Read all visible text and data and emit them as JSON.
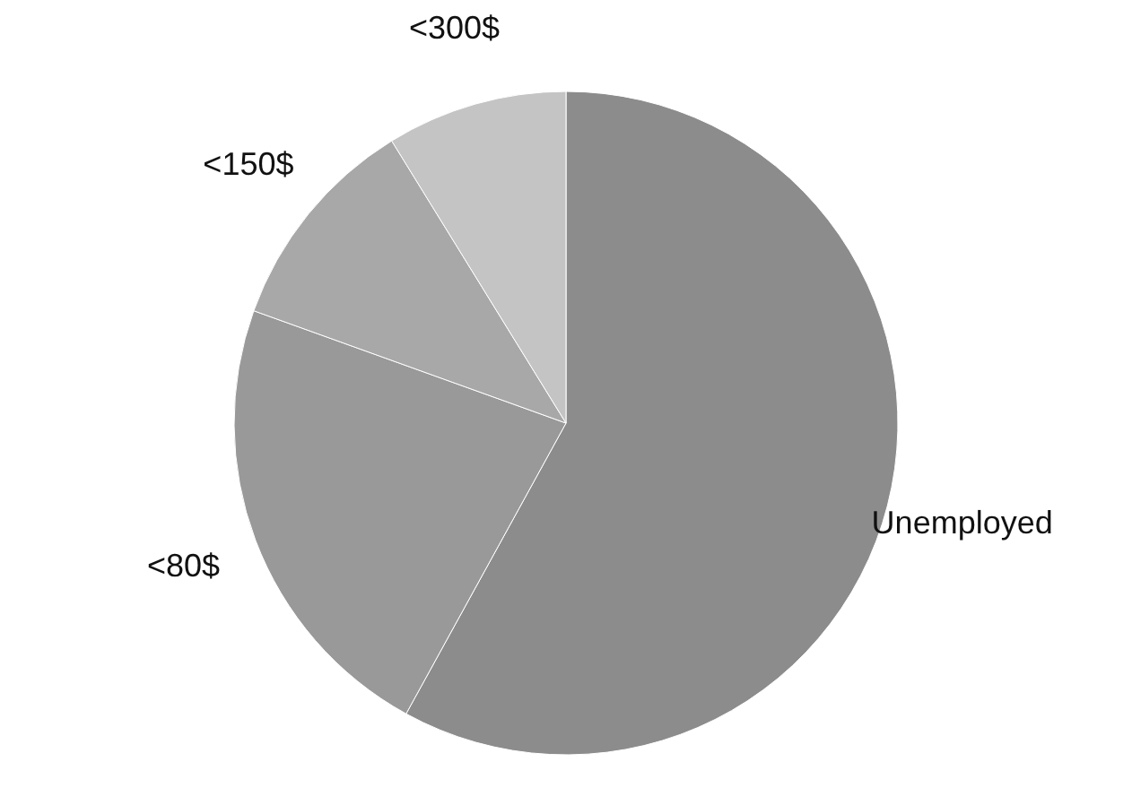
{
  "chart_data": {
    "type": "pie",
    "categories": [
      "Unemployed",
      "<80$",
      "<150$",
      "<300$"
    ],
    "values": [
      58,
      22.5,
      10.7,
      8.8
    ],
    "colors": [
      "#8c8c8c",
      "#999999",
      "#a8a8a8",
      "#c4c4c4"
    ]
  }
}
